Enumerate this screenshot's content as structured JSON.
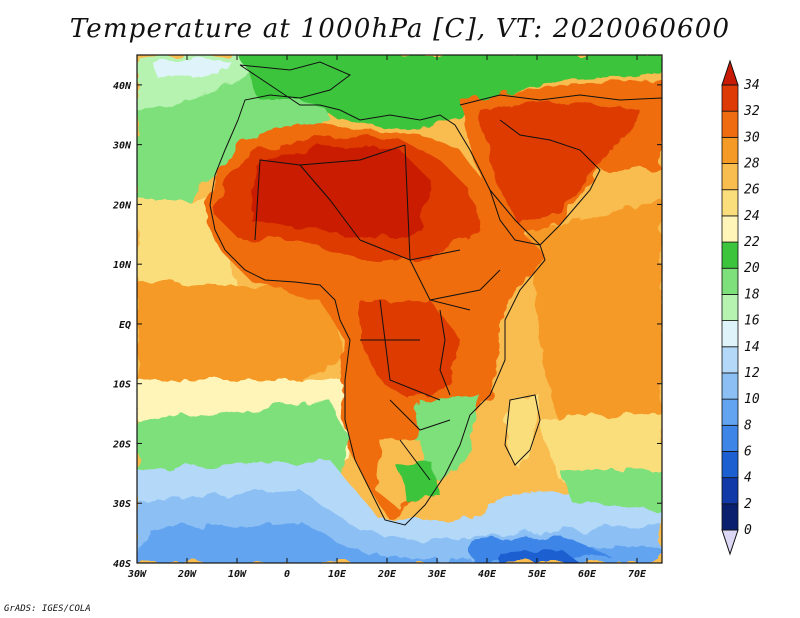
{
  "title": "Temperature at 1000hPa [C], VT: 2020060600",
  "credit": "GrADS: IGES/COLA",
  "axes": {
    "lon_ticks": [
      "30W",
      "20W",
      "10W",
      "0",
      "10E",
      "20E",
      "30E",
      "40E",
      "50E",
      "60E",
      "70E"
    ],
    "lat_ticks": [
      "40N",
      "30N",
      "20N",
      "10N",
      "EQ",
      "10S",
      "20S",
      "30S",
      "40S"
    ]
  },
  "colorbar": {
    "labels": [
      "0",
      "2",
      "4",
      "6",
      "8",
      "10",
      "12",
      "14",
      "16",
      "18",
      "20",
      "22",
      "24",
      "26",
      "28",
      "30",
      "32",
      "34"
    ],
    "colors": [
      "#0a1f6e",
      "#1239a8",
      "#1c5fd1",
      "#3d86e8",
      "#63a4f0",
      "#8cc0f5",
      "#b4d9f8",
      "#dff4fa",
      "#b6f2b0",
      "#7ee07a",
      "#3cc43c",
      "#fff5b8",
      "#fbde7c",
      "#f9bc4f",
      "#f59a25",
      "#ef6d10",
      "#dd3a05",
      "#c91a06"
    ]
  }
}
